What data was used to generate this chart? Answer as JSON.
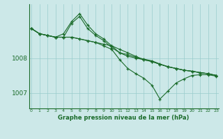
{
  "background_color": "#cce8e8",
  "grid_color": "#99cccc",
  "line_color": "#1a6b2a",
  "xlabel": "Graphe pression niveau de la mer (hPa)",
  "yticks": [
    1007,
    1008
  ],
  "xticks": [
    0,
    1,
    2,
    3,
    4,
    5,
    6,
    7,
    8,
    9,
    10,
    11,
    12,
    13,
    14,
    15,
    16,
    17,
    18,
    19,
    20,
    21,
    22,
    23
  ],
  "xlim": [
    -0.3,
    23.3
  ],
  "ylim": [
    1006.55,
    1009.55
  ],
  "line1_x": [
    0,
    1,
    2,
    3,
    4,
    5,
    6,
    7,
    8,
    9,
    10,
    11,
    12,
    13,
    14,
    15,
    16,
    17,
    18,
    19,
    20,
    21,
    22,
    23
  ],
  "line1_y": [
    1008.85,
    1008.7,
    1008.65,
    1008.6,
    1008.6,
    1008.6,
    1008.55,
    1008.5,
    1008.45,
    1008.4,
    1008.35,
    1008.25,
    1008.15,
    1008.05,
    1007.95,
    1007.9,
    1007.82,
    1007.75,
    1007.7,
    1007.65,
    1007.62,
    1007.58,
    1007.55,
    1007.5
  ],
  "line2_x": [
    0,
    1,
    2,
    3,
    4,
    5,
    6,
    7,
    8,
    9,
    10,
    11,
    12,
    13,
    14,
    15,
    16,
    17,
    18,
    19,
    20,
    21,
    22,
    23
  ],
  "line2_y": [
    1008.85,
    1008.7,
    1008.65,
    1008.6,
    1008.6,
    1009.0,
    1009.2,
    1008.85,
    1008.65,
    1008.5,
    1008.3,
    1008.15,
    1008.05,
    1008.0,
    1007.95,
    1007.9,
    1007.82,
    1007.75,
    1007.7,
    1007.65,
    1007.62,
    1007.58,
    1007.55,
    1007.5
  ],
  "line3_x": [
    0,
    1,
    2,
    3,
    4,
    5,
    6,
    7,
    8,
    9,
    10,
    11,
    12,
    13,
    14,
    15,
    16,
    17,
    18,
    19,
    20,
    21,
    22,
    23
  ],
  "line3_y": [
    1008.85,
    1008.7,
    1008.65,
    1008.6,
    1008.7,
    1009.05,
    1009.28,
    1008.95,
    1008.7,
    1008.55,
    1008.35,
    1008.15,
    1008.1,
    1008.02,
    1007.97,
    1007.92,
    1007.83,
    1007.75,
    1007.7,
    1007.65,
    1007.62,
    1007.58,
    1007.55,
    1007.5
  ],
  "line4_x": [
    0,
    1,
    2,
    3,
    4,
    5,
    6,
    7,
    8,
    9,
    10,
    11,
    12,
    13,
    14,
    15,
    16,
    17,
    18,
    19,
    20,
    21,
    22,
    23
  ],
  "line4_y": [
    1008.85,
    1008.7,
    1008.65,
    1008.6,
    1008.6,
    1008.6,
    1008.55,
    1008.5,
    1008.45,
    1008.35,
    1008.25,
    1007.95,
    1007.7,
    1007.55,
    1007.42,
    1007.22,
    1006.82,
    1007.05,
    1007.28,
    1007.4,
    1007.5,
    1007.52,
    1007.52,
    1007.48
  ]
}
